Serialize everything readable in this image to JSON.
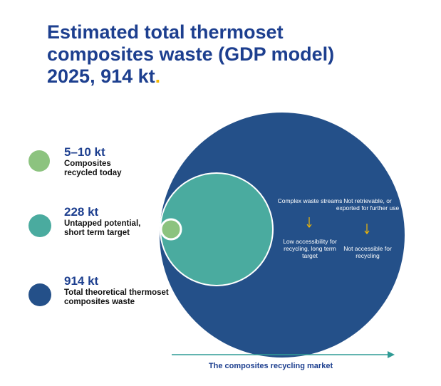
{
  "title": "Estimated total thermoset composites waste (GDP model) 2025, 914 kt",
  "title_dot": ".",
  "colors": {
    "navy": "#245089",
    "teal": "#4aab9f",
    "green": "#8cc37f",
    "title_blue": "#1d3f8f",
    "accent_yellow": "#f2b705",
    "arrow_teal": "#2f9b95"
  },
  "chart_data": {
    "type": "bubble",
    "title": "Estimated total thermoset composites waste (GDP model) 2025, 914 kt",
    "xlabel": "The composites recycling market",
    "series": [
      {
        "value_label": "5–10 kt",
        "name": "Composites recycled today",
        "value_kt": [
          5,
          10
        ],
        "color": "#8cc37f"
      },
      {
        "value_label": "228 kt",
        "name": "Untapped potential, short term target",
        "value_kt": 228,
        "color": "#4aab9f"
      },
      {
        "value_label": "914 kt",
        "name": "Total theoretical thermoset composites waste",
        "value_kt": 914,
        "color": "#245089"
      }
    ],
    "annotations": [
      {
        "from": "Complex waste streams",
        "to": "Low accessibility for recycling, long term target"
      },
      {
        "from": "Not retrievable, or exported for further use",
        "to": "Not accessible for recycling"
      }
    ]
  },
  "legend": [
    {
      "value": "5–10 kt",
      "desc": "Composites recycled today",
      "icon": "green-circle"
    },
    {
      "value": "228 kt",
      "desc": "Untapped potential, short term target",
      "icon": "teal-circle"
    },
    {
      "value": "914 kt",
      "desc": "Total theoretical thermoset composites waste",
      "icon": "navy-circle"
    }
  ],
  "notes": {
    "col1_top": "Complex waste streams",
    "col1_bottom": "Low accessibility for recycling, long term target",
    "col2_top": "Not retrievable, or exported for further use",
    "col2_bottom": "Not accessible for recycling"
  },
  "market_label": "The composites recycling market"
}
